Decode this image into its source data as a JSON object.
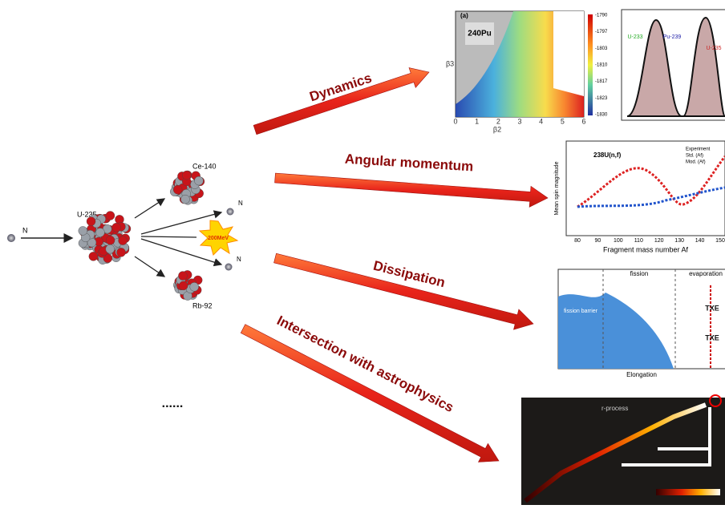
{
  "reaction": {
    "neutron": "N",
    "target": "U-235",
    "fragment_heavy": "Ce-140",
    "fragment_light": "Rb-92",
    "energy": "200MeV",
    "neutron_out_1": "N",
    "neutron_out_2": "N"
  },
  "topics": [
    "Dynamics",
    "Angular momentum",
    "Dissipation",
    "Intersection with astrophysics"
  ],
  "ellipsis": "......",
  "insets": {
    "dynamics": {
      "panel": "(a)",
      "nucleus": "240Pu",
      "x_label": "β2",
      "y_label": "β3",
      "x_ticks": [
        "0",
        "1",
        "2",
        "3",
        "4",
        "5",
        "6"
      ],
      "colorbar": [
        "-1790",
        "-1797",
        "-1803",
        "-1810",
        "-1817",
        "-1823",
        "-1830"
      ]
    },
    "yields": {
      "labels": [
        "U-235",
        "Pu-239",
        "U-233"
      ]
    },
    "angular": {
      "nucleus": "238U(n,f)",
      "x_label": "Fragment mass number Af",
      "y_label": "Mean spin magnitude",
      "x_ticks": [
        "80",
        "90",
        "100",
        "110",
        "120",
        "130",
        "140",
        "150"
      ],
      "legend": [
        "Experiment",
        "Std. (Af)",
        "Mod. (Af)"
      ]
    },
    "dissipation": {
      "phase_1": "fission",
      "phase_2": "evaporation",
      "barrier": "fission barrier",
      "x_label": "Elongation",
      "txe_1": "TXE",
      "txe_2": "TXE"
    },
    "astro": {
      "label": "r-process"
    }
  }
}
